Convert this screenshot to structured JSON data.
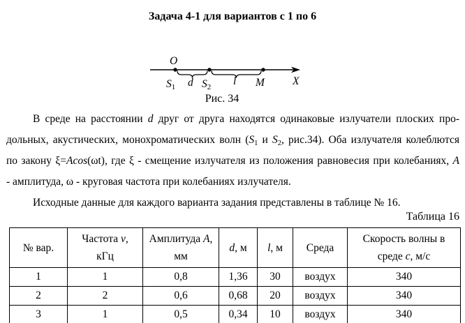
{
  "title": "Задача 4-1 для вариантов с 1 по 6",
  "colors": {
    "text": "#000000",
    "background": "#ffffff",
    "border": "#000000"
  },
  "figure": {
    "origin_label": "O",
    "axis_label": "X",
    "s1_base": "S",
    "s1_sub": "1",
    "s2_base": "S",
    "s2_sub": "2",
    "d_label": "d",
    "l_label": "l",
    "m_label": "M",
    "caption": "Рис. 34"
  },
  "body": {
    "p1_lines": [
      {
        "indent": true,
        "justify": true,
        "segments": [
          {
            "text": "В среде на расстоянии "
          },
          {
            "text": "d",
            "italic": true
          },
          {
            "text": " друг от друга находятся одинаковые излучатели плоских про-"
          }
        ]
      },
      {
        "indent": false,
        "justify": true,
        "segments": [
          {
            "text": "дольных, акустических, монохроматических волн ("
          },
          {
            "text": "S",
            "italic": true
          },
          {
            "text": "1",
            "sub": true
          },
          {
            "text": " и "
          },
          {
            "text": "S",
            "italic": true
          },
          {
            "text": "2",
            "sub": true
          },
          {
            "text": ", рис.34). Оба излучателя колеблются"
          }
        ]
      },
      {
        "indent": false,
        "justify": true,
        "segments": [
          {
            "text": "по закону ξ="
          },
          {
            "text": "Acos",
            "italic": true
          },
          {
            "text": "(ωt), где ξ - смещение излучателя из положения равновесия при колебаниях, "
          },
          {
            "text": "A",
            "italic": true
          }
        ]
      },
      {
        "indent": false,
        "justify": false,
        "segments": [
          {
            "text": "- амплитуда, ω - круговая частота при колебаниях излучателя."
          }
        ]
      }
    ],
    "p2_lines": [
      {
        "indent": true,
        "justify": false,
        "segments": [
          {
            "text": "Исходные данные для каждого варианта задания представлены в таблице № 16."
          }
        ]
      }
    ]
  },
  "table_label": "Таблица 16",
  "table": {
    "headers": [
      {
        "lines": [
          [
            {
              "text": "№ вар."
            }
          ]
        ]
      },
      {
        "lines": [
          [
            {
              "text": "Частота "
            },
            {
              "text": "ν",
              "italic": true
            },
            {
              "text": ","
            }
          ],
          [
            {
              "text": "кГц"
            }
          ]
        ]
      },
      {
        "lines": [
          [
            {
              "text": "Амплитуда "
            },
            {
              "text": "A",
              "italic": true
            },
            {
              "text": ","
            }
          ],
          [
            {
              "text": "мм"
            }
          ]
        ]
      },
      {
        "lines": [
          [
            {
              "text": "d",
              "italic": true
            },
            {
              "text": ", м"
            }
          ]
        ]
      },
      {
        "lines": [
          [
            {
              "text": "l",
              "italic": true
            },
            {
              "text": ", м"
            }
          ]
        ]
      },
      {
        "lines": [
          [
            {
              "text": "Среда"
            }
          ]
        ]
      },
      {
        "lines": [
          [
            {
              "text": "Скорость волны в"
            }
          ],
          [
            {
              "text": "среде "
            },
            {
              "text": "c",
              "italic": true
            },
            {
              "text": ", м/с"
            }
          ]
        ]
      }
    ],
    "rows": [
      [
        "1",
        "1",
        "0,8",
        "1,36",
        "30",
        "воздух",
        "340"
      ],
      [
        "2",
        "2",
        "0,6",
        "0,68",
        "20",
        "воздух",
        "340"
      ],
      [
        "3",
        "1",
        "0,5",
        "0,34",
        "10",
        "воздух",
        "340"
      ]
    ]
  }
}
